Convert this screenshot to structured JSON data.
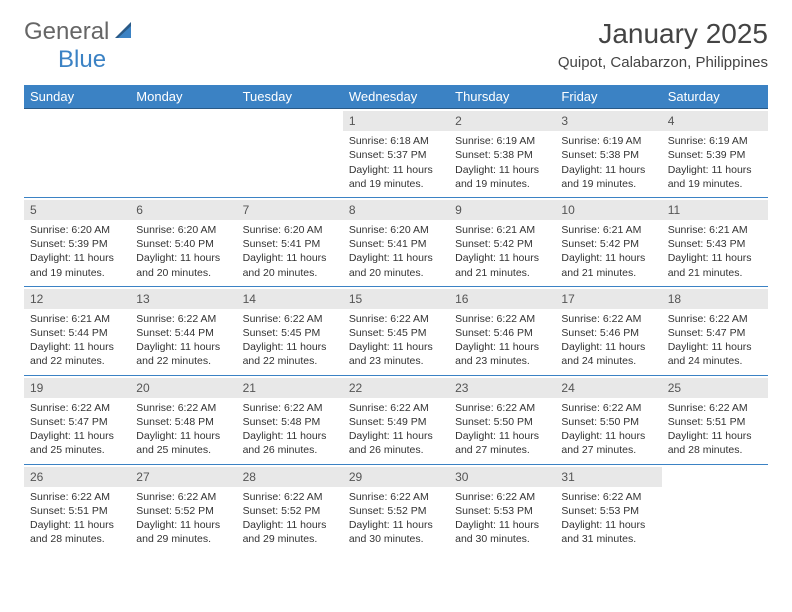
{
  "logo": {
    "part1": "General",
    "part2": "Blue"
  },
  "title": {
    "month": "January 2025",
    "location": "Quipot, Calabarzon, Philippines"
  },
  "colors": {
    "header_bg": "#3b82c4",
    "header_text": "#ffffff",
    "daynum_bg": "#e8e8e8",
    "daynum_text": "#555555",
    "border": "#3b82c4",
    "body_text": "#333333",
    "logo_gray": "#666666",
    "logo_blue": "#3b82c4"
  },
  "typography": {
    "title_month_fontsize": 28,
    "title_location_fontsize": 15,
    "weekday_fontsize": 13,
    "daynum_fontsize": 12,
    "cell_fontsize": 10.5
  },
  "weekdays": [
    "Sunday",
    "Monday",
    "Tuesday",
    "Wednesday",
    "Thursday",
    "Friday",
    "Saturday"
  ],
  "weeks": [
    [
      null,
      null,
      null,
      {
        "day": "1",
        "sunrise": "Sunrise: 6:18 AM",
        "sunset": "Sunset: 5:37 PM",
        "daylight": "Daylight: 11 hours and 19 minutes."
      },
      {
        "day": "2",
        "sunrise": "Sunrise: 6:19 AM",
        "sunset": "Sunset: 5:38 PM",
        "daylight": "Daylight: 11 hours and 19 minutes."
      },
      {
        "day": "3",
        "sunrise": "Sunrise: 6:19 AM",
        "sunset": "Sunset: 5:38 PM",
        "daylight": "Daylight: 11 hours and 19 minutes."
      },
      {
        "day": "4",
        "sunrise": "Sunrise: 6:19 AM",
        "sunset": "Sunset: 5:39 PM",
        "daylight": "Daylight: 11 hours and 19 minutes."
      }
    ],
    [
      {
        "day": "5",
        "sunrise": "Sunrise: 6:20 AM",
        "sunset": "Sunset: 5:39 PM",
        "daylight": "Daylight: 11 hours and 19 minutes."
      },
      {
        "day": "6",
        "sunrise": "Sunrise: 6:20 AM",
        "sunset": "Sunset: 5:40 PM",
        "daylight": "Daylight: 11 hours and 20 minutes."
      },
      {
        "day": "7",
        "sunrise": "Sunrise: 6:20 AM",
        "sunset": "Sunset: 5:41 PM",
        "daylight": "Daylight: 11 hours and 20 minutes."
      },
      {
        "day": "8",
        "sunrise": "Sunrise: 6:20 AM",
        "sunset": "Sunset: 5:41 PM",
        "daylight": "Daylight: 11 hours and 20 minutes."
      },
      {
        "day": "9",
        "sunrise": "Sunrise: 6:21 AM",
        "sunset": "Sunset: 5:42 PM",
        "daylight": "Daylight: 11 hours and 21 minutes."
      },
      {
        "day": "10",
        "sunrise": "Sunrise: 6:21 AM",
        "sunset": "Sunset: 5:42 PM",
        "daylight": "Daylight: 11 hours and 21 minutes."
      },
      {
        "day": "11",
        "sunrise": "Sunrise: 6:21 AM",
        "sunset": "Sunset: 5:43 PM",
        "daylight": "Daylight: 11 hours and 21 minutes."
      }
    ],
    [
      {
        "day": "12",
        "sunrise": "Sunrise: 6:21 AM",
        "sunset": "Sunset: 5:44 PM",
        "daylight": "Daylight: 11 hours and 22 minutes."
      },
      {
        "day": "13",
        "sunrise": "Sunrise: 6:22 AM",
        "sunset": "Sunset: 5:44 PM",
        "daylight": "Daylight: 11 hours and 22 minutes."
      },
      {
        "day": "14",
        "sunrise": "Sunrise: 6:22 AM",
        "sunset": "Sunset: 5:45 PM",
        "daylight": "Daylight: 11 hours and 22 minutes."
      },
      {
        "day": "15",
        "sunrise": "Sunrise: 6:22 AM",
        "sunset": "Sunset: 5:45 PM",
        "daylight": "Daylight: 11 hours and 23 minutes."
      },
      {
        "day": "16",
        "sunrise": "Sunrise: 6:22 AM",
        "sunset": "Sunset: 5:46 PM",
        "daylight": "Daylight: 11 hours and 23 minutes."
      },
      {
        "day": "17",
        "sunrise": "Sunrise: 6:22 AM",
        "sunset": "Sunset: 5:46 PM",
        "daylight": "Daylight: 11 hours and 24 minutes."
      },
      {
        "day": "18",
        "sunrise": "Sunrise: 6:22 AM",
        "sunset": "Sunset: 5:47 PM",
        "daylight": "Daylight: 11 hours and 24 minutes."
      }
    ],
    [
      {
        "day": "19",
        "sunrise": "Sunrise: 6:22 AM",
        "sunset": "Sunset: 5:47 PM",
        "daylight": "Daylight: 11 hours and 25 minutes."
      },
      {
        "day": "20",
        "sunrise": "Sunrise: 6:22 AM",
        "sunset": "Sunset: 5:48 PM",
        "daylight": "Daylight: 11 hours and 25 minutes."
      },
      {
        "day": "21",
        "sunrise": "Sunrise: 6:22 AM",
        "sunset": "Sunset: 5:48 PM",
        "daylight": "Daylight: 11 hours and 26 minutes."
      },
      {
        "day": "22",
        "sunrise": "Sunrise: 6:22 AM",
        "sunset": "Sunset: 5:49 PM",
        "daylight": "Daylight: 11 hours and 26 minutes."
      },
      {
        "day": "23",
        "sunrise": "Sunrise: 6:22 AM",
        "sunset": "Sunset: 5:50 PM",
        "daylight": "Daylight: 11 hours and 27 minutes."
      },
      {
        "day": "24",
        "sunrise": "Sunrise: 6:22 AM",
        "sunset": "Sunset: 5:50 PM",
        "daylight": "Daylight: 11 hours and 27 minutes."
      },
      {
        "day": "25",
        "sunrise": "Sunrise: 6:22 AM",
        "sunset": "Sunset: 5:51 PM",
        "daylight": "Daylight: 11 hours and 28 minutes."
      }
    ],
    [
      {
        "day": "26",
        "sunrise": "Sunrise: 6:22 AM",
        "sunset": "Sunset: 5:51 PM",
        "daylight": "Daylight: 11 hours and 28 minutes."
      },
      {
        "day": "27",
        "sunrise": "Sunrise: 6:22 AM",
        "sunset": "Sunset: 5:52 PM",
        "daylight": "Daylight: 11 hours and 29 minutes."
      },
      {
        "day": "28",
        "sunrise": "Sunrise: 6:22 AM",
        "sunset": "Sunset: 5:52 PM",
        "daylight": "Daylight: 11 hours and 29 minutes."
      },
      {
        "day": "29",
        "sunrise": "Sunrise: 6:22 AM",
        "sunset": "Sunset: 5:52 PM",
        "daylight": "Daylight: 11 hours and 30 minutes."
      },
      {
        "day": "30",
        "sunrise": "Sunrise: 6:22 AM",
        "sunset": "Sunset: 5:53 PM",
        "daylight": "Daylight: 11 hours and 30 minutes."
      },
      {
        "day": "31",
        "sunrise": "Sunrise: 6:22 AM",
        "sunset": "Sunset: 5:53 PM",
        "daylight": "Daylight: 11 hours and 31 minutes."
      },
      null
    ]
  ]
}
